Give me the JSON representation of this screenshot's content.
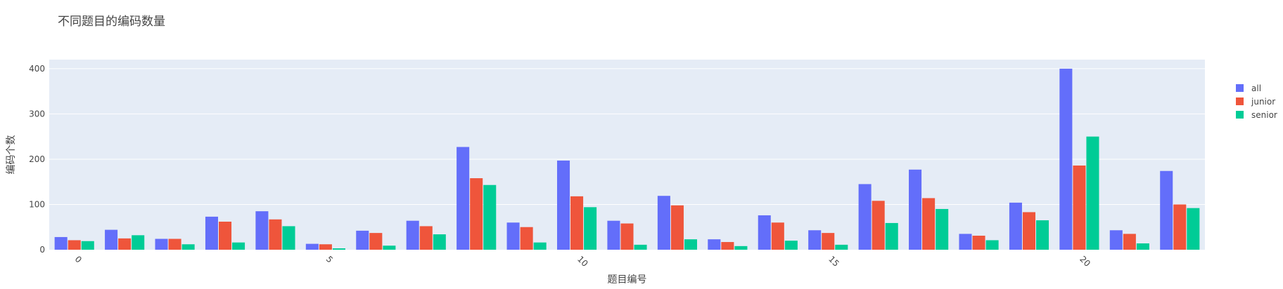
{
  "chart_data": {
    "type": "bar",
    "title": "不同题目的编码数量",
    "xlabel": "题目编号",
    "ylabel": "编码个数",
    "x": [
      0,
      1,
      2,
      3,
      4,
      5,
      6,
      7,
      8,
      9,
      10,
      11,
      12,
      13,
      14,
      15,
      16,
      17,
      18,
      19,
      20,
      21,
      22
    ],
    "x_ticks": [
      0,
      5,
      10,
      15,
      20
    ],
    "y_ticks": [
      0,
      100,
      200,
      300,
      400
    ],
    "ylim": [
      0,
      420
    ],
    "grid": true,
    "legend_position": "top-right",
    "series": [
      {
        "name": "all",
        "color": "#636efa",
        "values": [
          28,
          44,
          24,
          73,
          85,
          13,
          42,
          64,
          227,
          60,
          197,
          64,
          119,
          23,
          76,
          43,
          145,
          177,
          35,
          104,
          400,
          43,
          174
        ]
      },
      {
        "name": "junior",
        "color": "#ef553b",
        "values": [
          21,
          25,
          24,
          62,
          67,
          12,
          37,
          52,
          158,
          50,
          118,
          58,
          98,
          17,
          60,
          37,
          108,
          114,
          31,
          83,
          186,
          35,
          100
        ]
      },
      {
        "name": "senior",
        "color": "#00cc96",
        "values": [
          19,
          32,
          12,
          16,
          52,
          3,
          9,
          34,
          143,
          16,
          94,
          11,
          23,
          8,
          20,
          11,
          59,
          90,
          21,
          65,
          250,
          14,
          92
        ]
      }
    ]
  }
}
